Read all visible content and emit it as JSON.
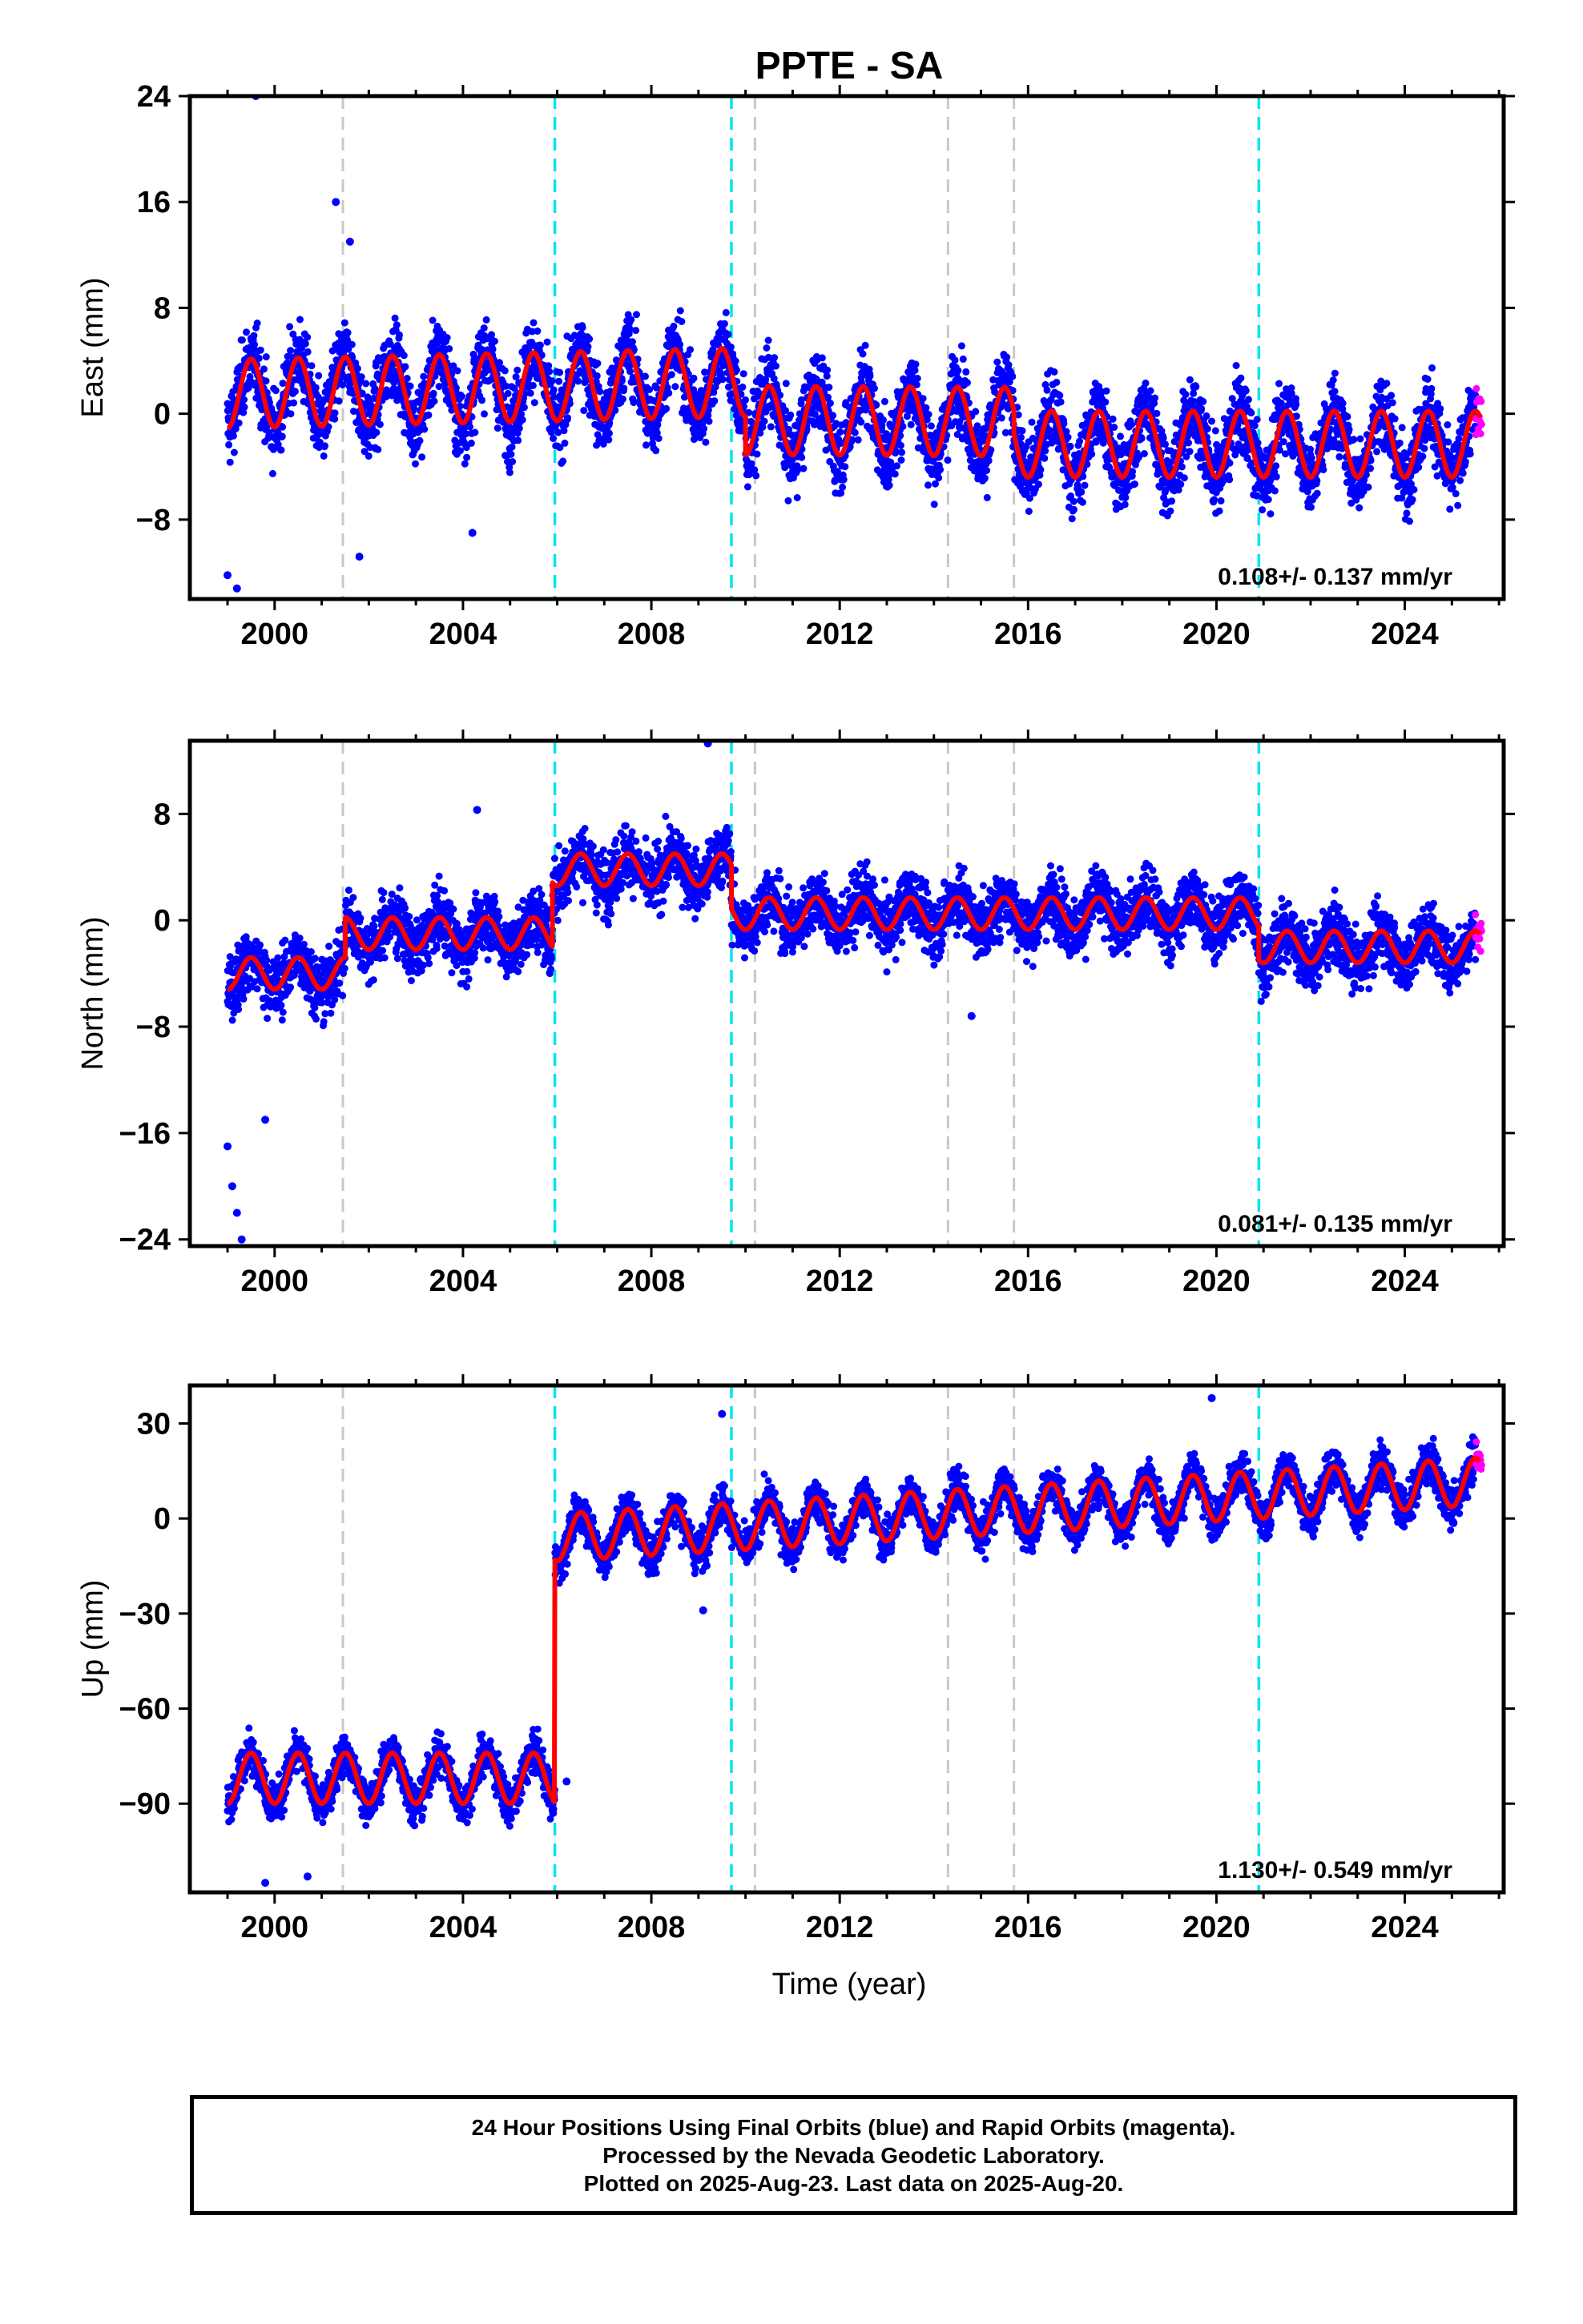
{
  "title": "PPTE - SA",
  "xlabel": "Time (year)",
  "caption": {
    "line1": "24 Hour Positions Using Final Orbits (blue) and Rapid Orbits (magenta).",
    "line2": "Processed by the Nevada Geodetic Laboratory.",
    "line3": "Plotted on 2025-Aug-23. Last data on 2025-Aug-20."
  },
  "colors": {
    "final": "#0000ff",
    "rapid": "#ff00ff",
    "model": "#ff0000",
    "equipment_change": "#c8c8c8",
    "earthquake": "#00e5ee"
  },
  "chart_data": [
    {
      "type": "scatter",
      "ylabel": "East (mm)",
      "xlim": [
        1998.2,
        2026.1
      ],
      "ylim": [
        -14,
        24
      ],
      "xticks": [
        2000,
        2004,
        2008,
        2012,
        2016,
        2020,
        2024
      ],
      "yticks": [
        -8,
        0,
        8,
        16,
        24
      ],
      "rate": "0.108+/- 0.137 mm/yr",
      "model": [
        {
          "x0": 1999.0,
          "x1": 2010.0,
          "base": 1.5,
          "slope": 0.08,
          "amp": 2.6
        },
        {
          "x0": 2010.0,
          "x1": 2015.7,
          "base": -0.5,
          "slope": -0.02,
          "amp": 2.6
        },
        {
          "x0": 2015.7,
          "x1": 2025.6,
          "base": -2.3,
          "slope": 0.0,
          "amp": 2.5
        }
      ],
      "scatter": 2.2,
      "outliers": [
        [
          1999.6,
          24.0
        ],
        [
          2001.3,
          16.0
        ],
        [
          2001.6,
          13.0
        ],
        [
          1999.0,
          -12.2
        ],
        [
          1999.2,
          -13.2
        ],
        [
          2001.8,
          -10.8
        ],
        [
          2004.2,
          -9.0
        ]
      ]
    },
    {
      "type": "scatter",
      "ylabel": "North (mm)",
      "xlim": [
        1998.2,
        2026.1
      ],
      "ylim": [
        -24.5,
        13.5
      ],
      "xticks": [
        2000,
        2004,
        2008,
        2012,
        2016,
        2020,
        2024
      ],
      "yticks": [
        -24,
        -16,
        -8,
        0,
        8
      ],
      "rate": "0.081+/- 0.135 mm/yr",
      "model": [
        {
          "x0": 1999.0,
          "x1": 2001.5,
          "base": -4.0,
          "slope": 0.0,
          "amp": 1.2
        },
        {
          "x0": 2001.5,
          "x1": 2005.9,
          "base": -1.0,
          "slope": 0.0,
          "amp": 1.2
        },
        {
          "x0": 2005.9,
          "x1": 2009.7,
          "base": 3.8,
          "slope": 0.0,
          "amp": 1.2
        },
        {
          "x0": 2009.7,
          "x1": 2020.9,
          "base": 0.5,
          "slope": 0.0,
          "amp": 1.2
        },
        {
          "x0": 2020.9,
          "x1": 2025.6,
          "base": -2.0,
          "slope": 0.0,
          "amp": 1.2
        }
      ],
      "scatter": 1.8,
      "outliers": [
        [
          1999.1,
          -20.0
        ],
        [
          1999.2,
          -22.0
        ],
        [
          1999.3,
          -24.0
        ],
        [
          1999.0,
          -17.0
        ],
        [
          1999.8,
          -15.0
        ],
        [
          2009.2,
          13.3
        ],
        [
          2004.3,
          8.3
        ],
        [
          2014.8,
          -7.2
        ]
      ]
    },
    {
      "type": "scatter",
      "ylabel": "Up (mm)",
      "xlim": [
        1998.2,
        2026.1
      ],
      "ylim": [
        -118,
        42
      ],
      "xticks": [
        2000,
        2004,
        2008,
        2012,
        2016,
        2020,
        2024
      ],
      "yticks": [
        -90,
        -60,
        -30,
        0,
        30
      ],
      "rate": "1.130+/- 0.549 mm/yr",
      "model": [
        {
          "x0": 1999.0,
          "x1": 2005.95,
          "base": -82.0,
          "slope": 0.0,
          "amp": 8.0
        },
        {
          "x0": 2005.95,
          "x1": 2025.6,
          "base": -6.0,
          "slope": 0.9,
          "amp": 7.5
        }
      ],
      "scatter": 5.0,
      "outliers": [
        [
          1999.8,
          -115.0
        ],
        [
          2000.7,
          -113.0
        ],
        [
          2006.2,
          -83.0
        ],
        [
          2009.5,
          33.0
        ],
        [
          2019.9,
          38.0
        ],
        [
          2009.1,
          -29.0
        ]
      ]
    }
  ],
  "event_lines": {
    "equipment_change": [
      2001.45,
      2010.2,
      2014.3,
      2015.7
    ],
    "earthquake": [
      2005.95,
      2009.7,
      2020.9
    ]
  },
  "data_span": {
    "first": 1999.0,
    "last": 2025.63,
    "rapid_start": 2025.5
  }
}
